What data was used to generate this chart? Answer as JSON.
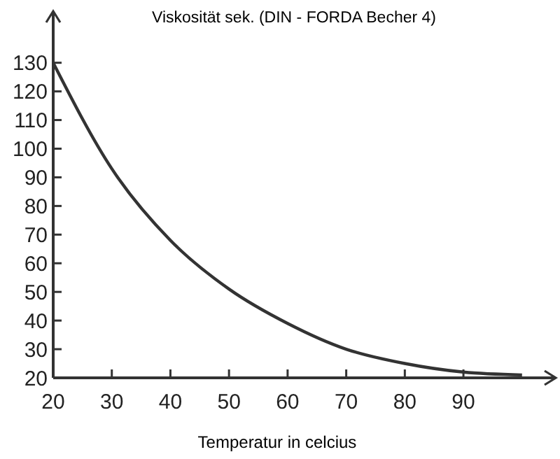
{
  "chart_data": {
    "type": "line",
    "title": "Viskosität sek. (DIN - FORDA Becher 4)",
    "xlabel": "Temperatur in celcius",
    "x": [
      20,
      30,
      40,
      50,
      60,
      70,
      80,
      90,
      100
    ],
    "series": [
      {
        "color": "#333333",
        "values": [
          130,
          93,
          68,
          51,
          39,
          30,
          25,
          22,
          21
        ]
      }
    ],
    "xlim": [
      20,
      106
    ],
    "ylim": [
      20,
      148
    ],
    "xticks": [
      20,
      30,
      40,
      50,
      60,
      70,
      80,
      90
    ],
    "yticks": [
      20,
      30,
      40,
      50,
      60,
      70,
      80,
      90,
      100,
      110,
      120,
      130
    ],
    "grid": false,
    "marker": "none",
    "line_style": "solid"
  }
}
